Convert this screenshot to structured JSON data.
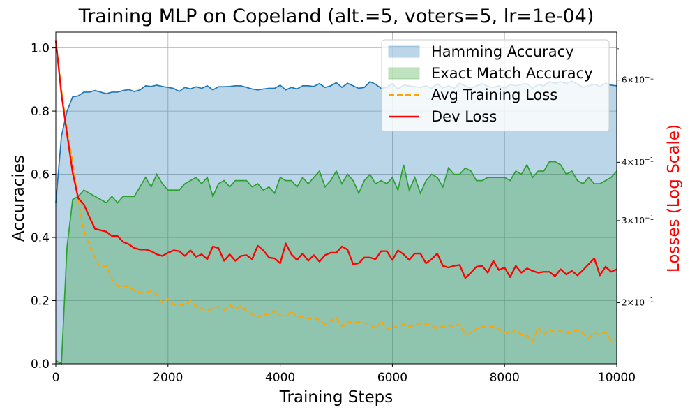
{
  "chart_data": {
    "type": "area",
    "title": "Training MLP on Copeland (alt.=5, voters=5, lr=1e-04)",
    "xlabel": "Training Steps",
    "ylabel": "Accuracies",
    "y2label": "Losses (Log Scale)",
    "xlim": [
      0,
      10000
    ],
    "ylim": [
      0,
      1.05
    ],
    "y2lim": [
      0.148,
      0.76
    ],
    "y2scale": "log",
    "grid": true,
    "legend_position": "top-right",
    "x_ticks": [
      0,
      2000,
      4000,
      6000,
      8000,
      10000
    ],
    "x_tick_labels": [
      "0",
      "2000",
      "4000",
      "6000",
      "8000",
      "10000"
    ],
    "y_ticks": [
      0.0,
      0.2,
      0.4,
      0.6,
      0.8,
      1.0
    ],
    "y_tick_labels": [
      "0.0",
      "0.2",
      "0.4",
      "0.6",
      "0.8",
      "1.0"
    ],
    "y2_ticks": [
      {
        "value": 0.2,
        "base": "2",
        "exp": "−1"
      },
      {
        "value": 0.3,
        "base": "3",
        "exp": "−1"
      },
      {
        "value": 0.4,
        "base": "4",
        "exp": "−1"
      },
      {
        "value": 0.6,
        "base": "6",
        "exp": "−1"
      }
    ],
    "y2_minor_ticks": [
      0.5,
      0.7
    ],
    "y2_tick_prefix": "×10",
    "x": [
      0,
      100,
      200,
      300,
      400,
      500,
      600,
      700,
      800,
      900,
      1000,
      1100,
      1200,
      1300,
      1400,
      1500,
      1600,
      1700,
      1800,
      1900,
      2000,
      2100,
      2200,
      2300,
      2400,
      2500,
      2600,
      2700,
      2800,
      2900,
      3000,
      3100,
      3200,
      3300,
      3400,
      3500,
      3600,
      3700,
      3800,
      3900,
      4000,
      4100,
      4200,
      4300,
      4400,
      4500,
      4600,
      4700,
      4800,
      4900,
      5000,
      5100,
      5200,
      5300,
      5400,
      5500,
      5600,
      5700,
      5800,
      5900,
      6000,
      6100,
      6200,
      6300,
      6400,
      6500,
      6600,
      6700,
      6800,
      6900,
      7000,
      7100,
      7200,
      7300,
      7400,
      7500,
      7600,
      7700,
      7800,
      7900,
      8000,
      8100,
      8200,
      8300,
      8400,
      8500,
      8600,
      8700,
      8800,
      8900,
      9000,
      9100,
      9200,
      9300,
      9400,
      9500,
      9600,
      9700,
      9800,
      9900,
      10000
    ],
    "series": [
      {
        "name": "Hamming Accuracy",
        "axis": "left",
        "style": "filled",
        "line_color": "#1f77b4",
        "fill_color": "#1f77b4",
        "fill_opacity": 0.3,
        "values": [
          0.51,
          0.72,
          0.8,
          0.845,
          0.848,
          0.86,
          0.86,
          0.865,
          0.86,
          0.855,
          0.86,
          0.86,
          0.865,
          0.868,
          0.862,
          0.867,
          0.88,
          0.878,
          0.882,
          0.878,
          0.875,
          0.872,
          0.862,
          0.875,
          0.87,
          0.877,
          0.872,
          0.88,
          0.867,
          0.877,
          0.877,
          0.878,
          0.88,
          0.88,
          0.875,
          0.87,
          0.867,
          0.87,
          0.872,
          0.872,
          0.882,
          0.867,
          0.875,
          0.87,
          0.88,
          0.88,
          0.878,
          0.887,
          0.875,
          0.88,
          0.89,
          0.875,
          0.888,
          0.88,
          0.872,
          0.875,
          0.893,
          0.885,
          0.872,
          0.875,
          0.887,
          0.87,
          0.882,
          0.88,
          0.877,
          0.875,
          0.88,
          0.872,
          0.887,
          0.873,
          0.88,
          0.872,
          0.888,
          0.88,
          0.872,
          0.88,
          0.887,
          0.878,
          0.875,
          0.88,
          0.872,
          0.885,
          0.88,
          0.885,
          0.887,
          0.872,
          0.885,
          0.88,
          0.893,
          0.888,
          0.893,
          0.887,
          0.895,
          0.885,
          0.875,
          0.88,
          0.885,
          0.878,
          0.888,
          0.882,
          0.88
        ]
      },
      {
        "name": "Exact Match Accuracy",
        "axis": "left",
        "style": "filled",
        "line_color": "#2ca02c",
        "fill_color": "#2ca02c",
        "fill_opacity": 0.3,
        "values": [
          0.01,
          0.0,
          0.37,
          0.52,
          0.53,
          0.55,
          0.54,
          0.53,
          0.52,
          0.51,
          0.53,
          0.51,
          0.53,
          0.53,
          0.53,
          0.56,
          0.59,
          0.56,
          0.6,
          0.57,
          0.55,
          0.55,
          0.55,
          0.57,
          0.58,
          0.59,
          0.57,
          0.59,
          0.53,
          0.57,
          0.58,
          0.56,
          0.58,
          0.58,
          0.58,
          0.56,
          0.57,
          0.55,
          0.56,
          0.54,
          0.59,
          0.58,
          0.58,
          0.56,
          0.59,
          0.57,
          0.59,
          0.61,
          0.56,
          0.58,
          0.61,
          0.57,
          0.6,
          0.58,
          0.54,
          0.58,
          0.6,
          0.57,
          0.58,
          0.57,
          0.59,
          0.55,
          0.63,
          0.55,
          0.59,
          0.54,
          0.58,
          0.6,
          0.59,
          0.56,
          0.62,
          0.6,
          0.6,
          0.62,
          0.61,
          0.58,
          0.58,
          0.59,
          0.59,
          0.59,
          0.59,
          0.58,
          0.61,
          0.6,
          0.63,
          0.59,
          0.61,
          0.61,
          0.64,
          0.64,
          0.63,
          0.6,
          0.61,
          0.58,
          0.57,
          0.59,
          0.57,
          0.57,
          0.58,
          0.59,
          0.61
        ]
      },
      {
        "name": "Avg Training Loss",
        "axis": "right",
        "style": "dashed",
        "line_color": "#ffa500",
        "values": [
          0.73,
          0.57,
          0.47,
          0.4,
          0.33,
          0.285,
          0.265,
          0.25,
          0.238,
          0.24,
          0.225,
          0.217,
          0.217,
          0.217,
          0.212,
          0.21,
          0.21,
          0.212,
          0.208,
          0.2,
          0.204,
          0.198,
          0.198,
          0.198,
          0.202,
          0.197,
          0.195,
          0.192,
          0.195,
          0.196,
          0.193,
          0.198,
          0.194,
          0.197,
          0.192,
          0.189,
          0.186,
          0.189,
          0.189,
          0.192,
          0.188,
          0.187,
          0.192,
          0.186,
          0.187,
          0.185,
          0.185,
          0.184,
          0.18,
          0.183,
          0.186,
          0.178,
          0.182,
          0.181,
          0.182,
          0.181,
          0.18,
          0.176,
          0.183,
          0.175,
          0.178,
          0.177,
          0.18,
          0.178,
          0.179,
          0.181,
          0.18,
          0.179,
          0.176,
          0.178,
          0.179,
          0.178,
          0.18,
          0.171,
          0.172,
          0.176,
          0.178,
          0.177,
          0.178,
          0.176,
          0.172,
          0.172,
          0.175,
          0.171,
          0.17,
          0.165,
          0.177,
          0.171,
          0.175,
          0.173,
          0.174,
          0.172,
          0.173,
          0.175,
          0.172,
          0.168,
          0.172,
          0.171,
          0.173,
          0.166,
          0.167
        ]
      },
      {
        "name": "Dev Loss",
        "axis": "right",
        "style": "solid",
        "line_color": "#ff0000",
        "values": [
          0.73,
          0.56,
          0.46,
          0.38,
          0.335,
          0.325,
          0.305,
          0.288,
          0.286,
          0.284,
          0.278,
          0.278,
          0.27,
          0.267,
          0.262,
          0.26,
          0.26,
          0.258,
          0.254,
          0.252,
          0.256,
          0.259,
          0.258,
          0.252,
          0.259,
          0.251,
          0.254,
          0.248,
          0.264,
          0.262,
          0.246,
          0.254,
          0.246,
          0.252,
          0.253,
          0.248,
          0.265,
          0.259,
          0.25,
          0.249,
          0.243,
          0.268,
          0.254,
          0.247,
          0.255,
          0.246,
          0.253,
          0.245,
          0.253,
          0.256,
          0.256,
          0.264,
          0.26,
          0.242,
          0.243,
          0.25,
          0.25,
          0.248,
          0.258,
          0.258,
          0.247,
          0.259,
          0.254,
          0.247,
          0.255,
          0.255,
          0.243,
          0.248,
          0.255,
          0.24,
          0.238,
          0.24,
          0.241,
          0.226,
          0.232,
          0.239,
          0.24,
          0.232,
          0.246,
          0.235,
          0.238,
          0.227,
          0.24,
          0.232,
          0.237,
          0.234,
          0.232,
          0.233,
          0.233,
          0.228,
          0.236,
          0.23,
          0.234,
          0.229,
          0.235,
          0.242,
          0.249,
          0.229,
          0.239,
          0.233,
          0.236
        ]
      }
    ]
  }
}
